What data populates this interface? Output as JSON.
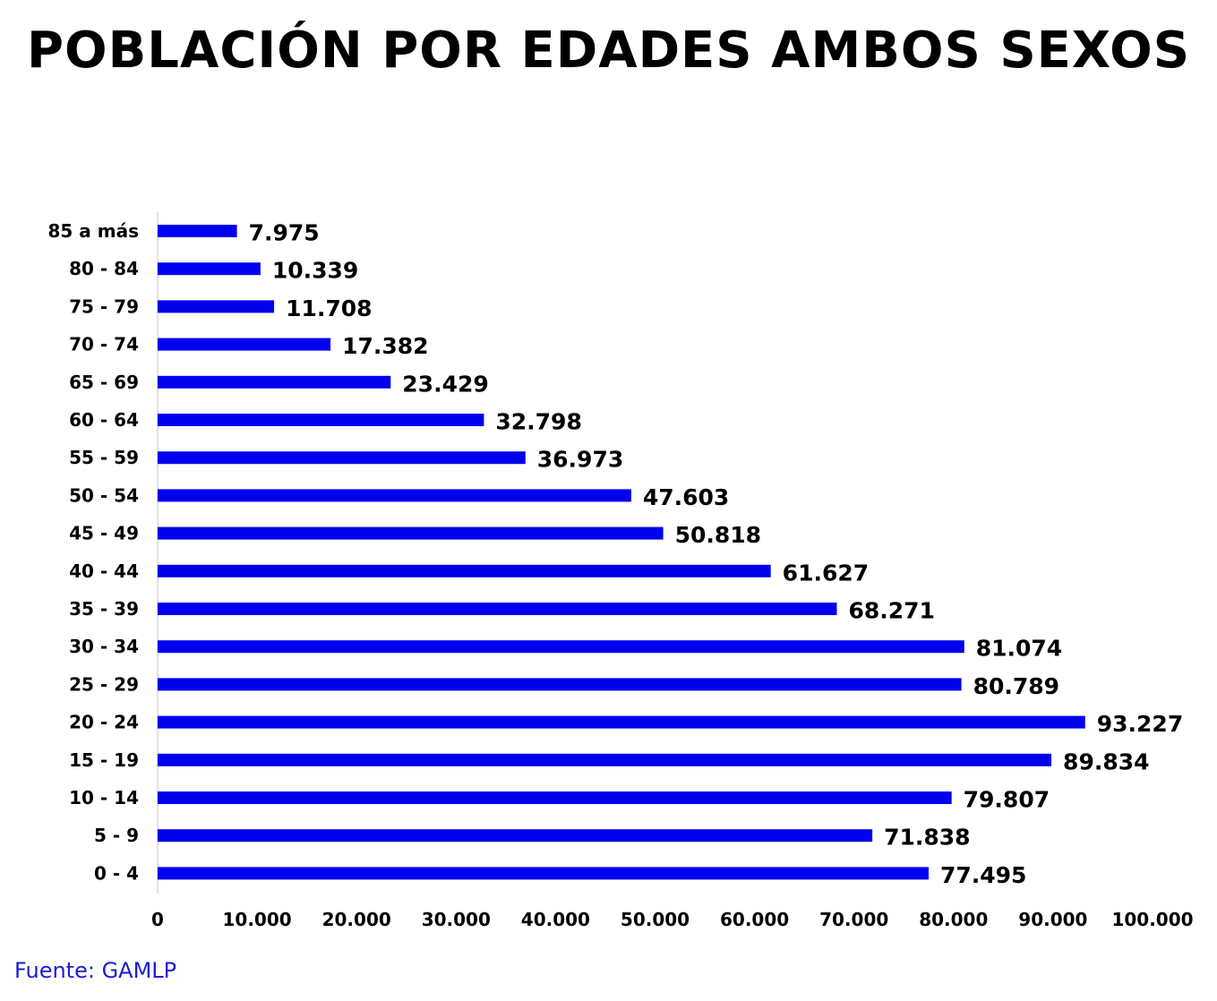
{
  "chart_data": {
    "type": "bar",
    "orientation": "horizontal",
    "title": "POBLACIÓN POR EDADES AMBOS SEXOS",
    "categories": [
      "85 a más",
      "80 - 84",
      "75 - 79",
      "70 - 74",
      "65 - 69",
      "60 - 64",
      "55 - 59",
      "50 - 54",
      "45 - 49",
      "40 - 44",
      "35 - 39",
      "30 - 34",
      "25 - 29",
      "20 - 24",
      "15 - 19",
      "10 - 14",
      "5 - 9",
      "0 - 4"
    ],
    "values": [
      7975,
      10339,
      11708,
      17382,
      23429,
      32798,
      36973,
      47603,
      50818,
      61627,
      68271,
      81074,
      80789,
      93227,
      89834,
      79807,
      71838,
      77495
    ],
    "value_labels": [
      "7.975",
      "10.339",
      "11.708",
      "17.382",
      "23.429",
      "32.798",
      "36.973",
      "47.603",
      "50.818",
      "61.627",
      "68.271",
      "81.074",
      "80.789",
      "93.227",
      "89.834",
      "79.807",
      "71.838",
      "77.495"
    ],
    "xlim": [
      0,
      100000
    ],
    "x_ticks": [
      0,
      10000,
      20000,
      30000,
      40000,
      50000,
      60000,
      70000,
      80000,
      90000,
      100000
    ],
    "x_tick_labels": [
      "0",
      "10.000",
      "20.000",
      "30.000",
      "40.000",
      "50.000",
      "60.000",
      "70.000",
      "80.000",
      "90.000",
      "100.000"
    ],
    "grid": false,
    "bar_color": "#0000ee",
    "source": "Fuente: GAMLP"
  }
}
